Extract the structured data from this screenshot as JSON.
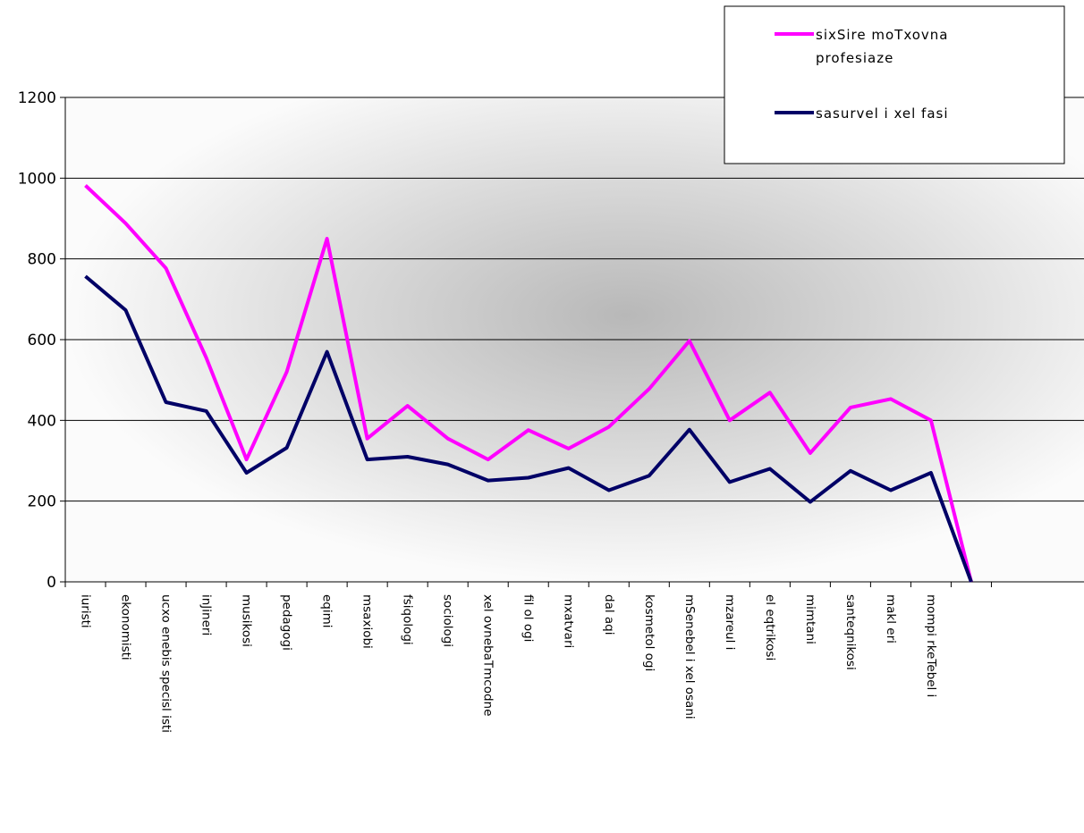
{
  "chart_data": {
    "type": "line",
    "title": "",
    "xlabel": "",
    "ylabel": "",
    "ylim": [
      0,
      1200
    ],
    "yticks": [
      0,
      200,
      400,
      600,
      800,
      1000,
      1200
    ],
    "grid": "horizontal",
    "legend_position": "top-right",
    "categories": [
      "iuristi",
      "ekonomisti",
      "ucxo enebis specisl isti",
      "inJineri",
      "musikosi",
      "pedagogi",
      "eqimi",
      "msaxiobi",
      "fsiqologi",
      "sociologi",
      "xel ovnebaTmcodne",
      "fil ol ogi",
      "mxatvari",
      "dal aqi",
      "kosmetol ogi",
      "mSenebel i xel osani",
      "mzareul i",
      "el eqtrikosi",
      "mimtani",
      "santeqnikosi",
      "makl eri",
      "mompi rkeTebel i",
      ""
    ],
    "series": [
      {
        "name": "sixSire moTxovna profesiaze",
        "color": "#ff00ff",
        "values": [
          982,
          888,
          777,
          555,
          303,
          520,
          850,
          355,
          436,
          355,
          303,
          376,
          330,
          384,
          478,
          597,
          400,
          469,
          319,
          432,
          453,
          400,
          0
        ]
      },
      {
        "name": "sasurvel i xel fasi",
        "color": "#000066",
        "values": [
          757,
          673,
          445,
          423,
          270,
          332,
          570,
          303,
          310,
          291,
          251,
          258,
          282,
          227,
          263,
          377,
          247,
          280,
          198,
          275,
          227,
          270,
          0
        ]
      }
    ],
    "legend": {
      "entries": [
        {
          "line1": "sixSire moTxovna",
          "line2": "profesiaze"
        },
        {
          "line1": "sasurvel i xel fasi",
          "line2": ""
        }
      ]
    }
  }
}
